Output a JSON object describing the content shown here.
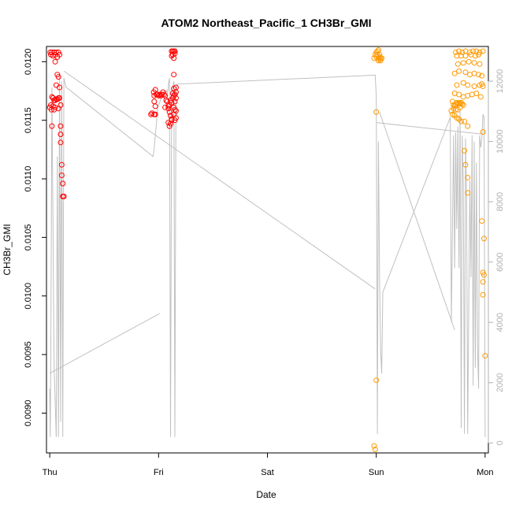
{
  "chart_data": {
    "type": "scatter",
    "title": "ATOM2 Northeast_Pacific_1 CH3Br_GMI",
    "xlabel": "Date",
    "ylabel": "CH3Br_GMI",
    "x_ticks": [
      "Thu",
      "Fri",
      "Sat",
      "Sun",
      "Mon"
    ],
    "xlim": [
      -0.03,
      4.03
    ],
    "ylim": [
      0.00866,
      0.01213
    ],
    "y_ticks": [
      0.009,
      0.0095,
      0.01,
      0.0105,
      0.011,
      0.0115,
      0.012
    ],
    "y_tick_labels": [
      "0.0090",
      "0.0095",
      "0.0100",
      "0.0105",
      "0.0110",
      "0.0115",
      "0.0120"
    ],
    "y2lim": [
      -330,
      13150
    ],
    "y2_ticks": [
      0,
      2000,
      4000,
      6000,
      8000,
      10000,
      12000
    ],
    "y2_tick_labels": [
      "0",
      "2000",
      "4000",
      "6000",
      "8000",
      "10000",
      "12000"
    ],
    "grid": false,
    "colors": {
      "red": "#ff0000",
      "orange": "#ff9900",
      "altitude": "#c0c0c0"
    },
    "series": [
      {
        "color": "#ff0000",
        "points": [
          [
            0.005,
            0.01208
          ],
          [
            0.01,
            0.01206
          ],
          [
            0.02,
            0.01208
          ],
          [
            0.03,
            0.01205
          ],
          [
            0.04,
            0.01208
          ],
          [
            0.05,
            0.01206
          ],
          [
            0.06,
            0.01208
          ],
          [
            0.07,
            0.01204
          ],
          [
            0.08,
            0.01208
          ],
          [
            0.09,
            0.01206
          ],
          [
            0.05,
            0.012
          ],
          [
            0.06,
            0.0118
          ],
          [
            0.07,
            0.01189
          ],
          [
            0.08,
            0.01187
          ],
          [
            0.09,
            0.01178
          ],
          [
            0.0,
            0.01161
          ],
          [
            0.01,
            0.01163
          ],
          [
            0.015,
            0.01159
          ],
          [
            0.02,
            0.0117
          ],
          [
            0.03,
            0.01169
          ],
          [
            0.03,
            0.01162
          ],
          [
            0.04,
            0.01167
          ],
          [
            0.04,
            0.01159
          ],
          [
            0.05,
            0.01167
          ],
          [
            0.05,
            0.01161
          ],
          [
            0.06,
            0.01168
          ],
          [
            0.07,
            0.01168
          ],
          [
            0.08,
            0.01169
          ],
          [
            0.09,
            0.01169
          ],
          [
            0.1,
            0.01163
          ],
          [
            0.08,
            0.0116
          ],
          [
            0.02,
            0.01145
          ],
          [
            0.1,
            0.01145
          ],
          [
            0.1,
            0.01138
          ],
          [
            0.1,
            0.01131
          ],
          [
            0.11,
            0.01112
          ],
          [
            0.11,
            0.01103
          ],
          [
            0.12,
            0.01096
          ],
          [
            0.12,
            0.01085
          ],
          [
            0.13,
            0.01085
          ],
          [
            0.955,
            0.01174
          ],
          [
            0.96,
            0.01171
          ],
          [
            0.97,
            0.01176
          ],
          [
            0.98,
            0.01172
          ],
          [
            0.99,
            0.01172
          ],
          [
            1.0,
            0.01171
          ],
          [
            1.01,
            0.01172
          ],
          [
            1.02,
            0.01171
          ],
          [
            1.03,
            0.01172
          ],
          [
            1.04,
            0.01174
          ],
          [
            1.05,
            0.01172
          ],
          [
            1.06,
            0.01171
          ],
          [
            0.96,
            0.01166
          ],
          [
            0.97,
            0.01162
          ],
          [
            1.06,
            0.01161
          ],
          [
            1.07,
            0.01167
          ],
          [
            1.08,
            0.01166
          ],
          [
            1.09,
            0.01162
          ],
          [
            0.96,
            0.01155
          ],
          [
            0.97,
            0.01155
          ],
          [
            0.93,
            0.01155
          ],
          [
            0.94,
            0.01156
          ],
          [
            1.09,
            0.0116
          ],
          [
            1.1,
            0.01163
          ],
          [
            1.11,
            0.01167
          ],
          [
            1.12,
            0.01165
          ],
          [
            1.13,
            0.01169
          ],
          [
            1.13,
            0.01173
          ],
          [
            1.14,
            0.01171
          ],
          [
            1.14,
            0.01177
          ],
          [
            1.1,
            0.01157
          ],
          [
            1.11,
            0.01154
          ],
          [
            1.12,
            0.01151
          ],
          [
            1.14,
            0.01161
          ],
          [
            1.15,
            0.01159
          ],
          [
            1.16,
            0.01158
          ],
          [
            1.09,
            0.01148
          ],
          [
            1.1,
            0.01145
          ],
          [
            1.11,
            0.01147
          ],
          [
            1.12,
            0.0115
          ],
          [
            1.15,
            0.0115
          ],
          [
            1.16,
            0.01152
          ],
          [
            1.14,
            0.01155
          ],
          [
            1.15,
            0.01166
          ],
          [
            1.16,
            0.01169
          ],
          [
            1.15,
            0.01172
          ],
          [
            1.16,
            0.01174
          ],
          [
            1.16,
            0.01178
          ],
          [
            1.14,
            0.01189
          ],
          [
            1.14,
            0.01203
          ],
          [
            1.12,
            0.01205
          ],
          [
            1.12,
            0.01209
          ],
          [
            1.13,
            0.01209
          ],
          [
            1.14,
            0.01209
          ],
          [
            1.15,
            0.01209
          ],
          [
            1.13,
            0.01206
          ],
          [
            1.15,
            0.01207
          ]
        ]
      },
      {
        "color": "#ff9900",
        "points": [
          [
            2.98,
            0.01203
          ],
          [
            2.99,
            0.01206
          ],
          [
            3.0,
            0.01204
          ],
          [
            3.01,
            0.01206
          ],
          [
            3.02,
            0.01203
          ],
          [
            3.03,
            0.01202
          ],
          [
            3.04,
            0.01201
          ],
          [
            3.0,
            0.01208
          ],
          [
            3.01,
            0.01209
          ],
          [
            3.02,
            0.0121
          ],
          [
            3.03,
            0.01206
          ],
          [
            3.04,
            0.01203
          ],
          [
            3.05,
            0.01203
          ],
          [
            3.02,
            0.01201
          ],
          [
            3.03,
            0.01204
          ],
          [
            3.0,
            0.01157
          ],
          [
            3.0,
            0.00928
          ],
          [
            2.98,
            0.00872
          ],
          [
            2.99,
            0.00869
          ],
          [
            3.73,
            0.01208
          ],
          [
            3.76,
            0.01209
          ],
          [
            3.79,
            0.01208
          ],
          [
            3.82,
            0.01209
          ],
          [
            3.86,
            0.01208
          ],
          [
            3.89,
            0.01209
          ],
          [
            3.92,
            0.01209
          ],
          [
            3.95,
            0.01208
          ],
          [
            3.98,
            0.01209
          ],
          [
            3.74,
            0.01205
          ],
          [
            3.78,
            0.01205
          ],
          [
            3.82,
            0.01205
          ],
          [
            3.87,
            0.01206
          ],
          [
            3.91,
            0.01205
          ],
          [
            3.94,
            0.01206
          ],
          [
            3.75,
            0.01198
          ],
          [
            3.8,
            0.01199
          ],
          [
            3.85,
            0.012
          ],
          [
            3.9,
            0.01199
          ],
          [
            3.95,
            0.01198
          ],
          [
            3.72,
            0.0119
          ],
          [
            3.76,
            0.01192
          ],
          [
            3.82,
            0.01191
          ],
          [
            3.86,
            0.01189
          ],
          [
            3.9,
            0.0119
          ],
          [
            3.94,
            0.01189
          ],
          [
            3.97,
            0.01188
          ],
          [
            3.74,
            0.0118
          ],
          [
            3.8,
            0.01182
          ],
          [
            3.84,
            0.0118
          ],
          [
            3.9,
            0.01179
          ],
          [
            3.95,
            0.0118
          ],
          [
            3.97,
            0.01181
          ],
          [
            3.98,
            0.01179
          ],
          [
            3.72,
            0.01173
          ],
          [
            3.76,
            0.01172
          ],
          [
            3.8,
            0.0117
          ],
          [
            3.84,
            0.01171
          ],
          [
            3.88,
            0.01172
          ],
          [
            3.92,
            0.01173
          ],
          [
            3.96,
            0.0117
          ],
          [
            3.7,
            0.01166
          ],
          [
            3.71,
            0.01163
          ],
          [
            3.72,
            0.01162
          ],
          [
            3.73,
            0.01164
          ],
          [
            3.74,
            0.01165
          ],
          [
            3.75,
            0.01164
          ],
          [
            3.76,
            0.01165
          ],
          [
            3.77,
            0.01164
          ],
          [
            3.78,
            0.01165
          ],
          [
            3.79,
            0.01164
          ],
          [
            3.8,
            0.01163
          ],
          [
            3.71,
            0.0116
          ],
          [
            3.73,
            0.01159
          ],
          [
            3.75,
            0.01159
          ],
          [
            3.77,
            0.01161
          ],
          [
            3.7,
            0.01155
          ],
          [
            3.72,
            0.01154
          ],
          [
            3.74,
            0.01152
          ],
          [
            3.76,
            0.01151
          ],
          [
            3.78,
            0.01149
          ],
          [
            3.81,
            0.01149
          ],
          [
            3.84,
            0.01145
          ],
          [
            3.98,
            0.0114
          ],
          [
            3.69,
            0.01158
          ],
          [
            3.81,
            0.01124
          ],
          [
            3.82,
            0.01112
          ],
          [
            3.84,
            0.01101
          ],
          [
            3.84,
            0.01088
          ],
          [
            3.97,
            0.01064
          ],
          [
            3.99,
            0.01049
          ],
          [
            3.98,
            0.0102
          ],
          [
            3.99,
            0.01018
          ],
          [
            3.98,
            0.01012
          ],
          [
            3.98,
            0.01001
          ],
          [
            4.0,
            0.00949
          ]
        ]
      }
    ],
    "altitude_line": {
      "color": "#c0c0c0",
      "points": [
        [
          0.0,
          1800
        ],
        [
          0.005,
          200
        ],
        [
          0.01,
          2700
        ],
        [
          0.02,
          11800
        ],
        [
          0.04,
          2500
        ],
        [
          0.06,
          200
        ],
        [
          0.07,
          9500
        ],
        [
          0.08,
          200
        ],
        [
          0.09,
          12200
        ],
        [
          0.1,
          700
        ],
        [
          0.11,
          12000
        ],
        [
          0.12,
          200
        ],
        [
          0.13,
          12100
        ],
        [
          0.15,
          11800
        ],
        [
          0.95,
          9500
        ],
        [
          0.96,
          9800
        ],
        [
          0.98,
          10600
        ],
        [
          0.99,
          11100
        ],
        [
          1.0,
          11200
        ],
        [
          1.02,
          11400
        ],
        [
          1.05,
          11500
        ],
        [
          1.07,
          11700
        ],
        [
          1.08,
          11600
        ],
        [
          1.09,
          11800
        ],
        [
          1.09,
          11900
        ],
        [
          1.1,
          12100
        ],
        [
          1.11,
          200
        ],
        [
          1.12,
          11500
        ],
        [
          1.13,
          11800
        ],
        [
          1.14,
          12000
        ],
        [
          1.15,
          200
        ],
        [
          1.16,
          11600
        ],
        [
          1.17,
          11900
        ],
        [
          2.99,
          12200
        ],
        [
          3.0,
          11500
        ],
        [
          3.01,
          300
        ],
        [
          3.02,
          10000
        ],
        [
          3.03,
          5600
        ],
        [
          3.04,
          3100
        ],
        [
          3.05,
          2300
        ],
        [
          3.06,
          5000
        ],
        [
          3.68,
          10800
        ],
        [
          3.69,
          4000
        ],
        [
          3.71,
          10200
        ],
        [
          3.72,
          5800
        ],
        [
          3.73,
          10300
        ],
        [
          3.74,
          7100
        ],
        [
          3.75,
          10500
        ],
        [
          3.76,
          5800
        ],
        [
          3.77,
          11000
        ],
        [
          3.78,
          500
        ],
        [
          3.79,
          10200
        ],
        [
          3.8,
          8600
        ],
        [
          3.81,
          300
        ],
        [
          3.82,
          10100
        ],
        [
          3.83,
          8000
        ],
        [
          3.84,
          300
        ],
        [
          3.86,
          8700
        ],
        [
          3.87,
          5500
        ],
        [
          3.88,
          10200
        ],
        [
          3.89,
          1900
        ],
        [
          3.9,
          10000
        ],
        [
          3.91,
          2500
        ],
        [
          3.92,
          9300
        ],
        [
          3.93,
          3200
        ],
        [
          3.94,
          1800
        ],
        [
          3.95,
          10200
        ],
        [
          3.96,
          9800
        ],
        [
          3.97,
          10100
        ],
        [
          3.98,
          10900
        ],
        [
          3.99,
          10800
        ],
        [
          4.0,
          200
        ]
      ]
    },
    "trend_segments": [
      [
        [
          0.0,
          0.00934
        ],
        [
          1.01,
          0.00985
        ]
      ],
      [
        [
          0.13,
          0.01192
        ],
        [
          2.99,
          0.01006
        ]
      ],
      [
        [
          3.0,
          0.01148
        ],
        [
          3.99,
          0.01138
        ]
      ],
      [
        [
          3.03,
          0.01157
        ],
        [
          3.72,
          0.00971
        ]
      ]
    ]
  }
}
